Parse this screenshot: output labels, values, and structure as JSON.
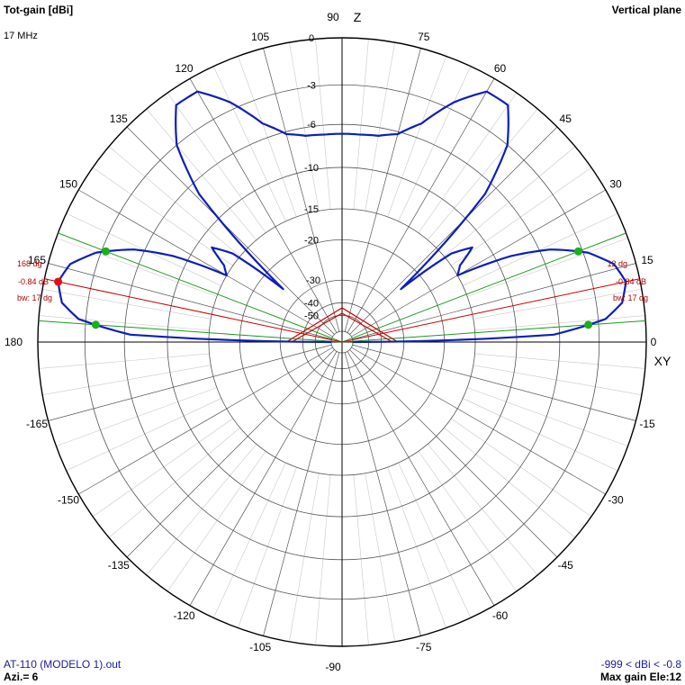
{
  "header": {
    "left_title": "Tot-gain [dBi]",
    "frequency": "17 MHz",
    "right_title": "Vertical plane"
  },
  "footer": {
    "file_name": "AT-110 (MODELO 1).out",
    "azimuth": "Azi.= 6",
    "range": "-999 < dBi < -0.8",
    "max_gain": "Max gain Ele:12"
  },
  "axis_labels": {
    "z": "Z",
    "xy": "XY"
  },
  "colors": {
    "pattern": "#0d1fb8",
    "grid": "#c8c8c8",
    "rings": "#000000",
    "beam_lines": "#1a9a1a",
    "max_line": "#cc0000",
    "annotation": "#b00000",
    "footer_text": "#1a1aa0"
  },
  "chart_data": {
    "type": "polar",
    "title": "Tot-gain [dBi]",
    "plane": "Vertical plane",
    "angle_ticks": [
      0,
      15,
      30,
      45,
      60,
      75,
      90,
      105,
      120,
      135,
      150,
      165,
      180,
      -165,
      -150,
      -135,
      -120,
      -105,
      -90,
      -75,
      -60,
      -45,
      -30,
      -15
    ],
    "angle_tick_labels": [
      "0",
      "15",
      "30",
      "45",
      "60",
      "75",
      "90",
      "105",
      "120",
      "135",
      "150",
      "165",
      "180",
      "-165",
      "-150",
      "-135",
      "-120",
      "-105",
      "-90",
      "-75",
      "-60",
      "-45",
      "-30",
      "-15"
    ],
    "ring_levels_db": [
      0,
      -3,
      -6,
      -10,
      -15,
      -20,
      -30,
      -40,
      -50
    ],
    "ring_labels": [
      "0",
      "-3",
      "-6",
      "-10",
      "-15",
      "-20",
      "-30",
      "-40",
      "-50"
    ],
    "pattern": {
      "elevation_deg": [
        0,
        2,
        5,
        8,
        12,
        16,
        20,
        24,
        27,
        30,
        33,
        36,
        39,
        42,
        46,
        50,
        55,
        60,
        65,
        70,
        75,
        80,
        85,
        90
      ],
      "gain_db": [
        -999,
        -6.5,
        -2.5,
        -1.3,
        -0.84,
        -1.3,
        -2.7,
        -5.2,
        -8.5,
        -15,
        -14,
        -11.5,
        -14,
        -25,
        -7,
        -3,
        -0.9,
        -0.9,
        -2.5,
        -4.8,
        -6.2,
        -6.7,
        -6.8,
        -6.8
      ]
    },
    "max_gain": {
      "label_gain": "-0.84 dB",
      "label_angle": "12 dg",
      "label_angle_back": "168 dg",
      "label_beamwidth": "bw: 17 dg",
      "elevation_deg": 12,
      "elevation_back_deg": 168,
      "gain_db": -0.84
    },
    "beamwidth": {
      "edges_deg": [
        4,
        21,
        159,
        176
      ]
    },
    "rings_shown": [
      "Z",
      "XY"
    ]
  }
}
